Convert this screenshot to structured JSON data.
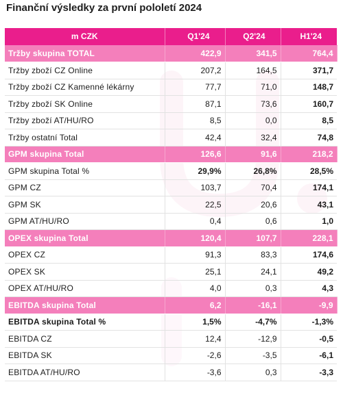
{
  "title": "Finanční výsledky za první pololetí 2024",
  "table": {
    "headers": [
      "m CZK",
      "Q1'24",
      "Q2'24",
      "H1'24"
    ],
    "rows": [
      {
        "label": "Tržby skupina TOTAL",
        "q1": "422,9",
        "q2": "341,5",
        "h1": "764,4",
        "style": "group"
      },
      {
        "label": "Tržby zboží CZ Online",
        "q1": "207,2",
        "q2": "164,5",
        "h1": "371,7",
        "style": "normal"
      },
      {
        "label": "Tržby zboží CZ Kamenné lékárny",
        "q1": "77,7",
        "q2": "71,0",
        "h1": "148,7",
        "style": "normal"
      },
      {
        "label": "Tržby zboží SK Online",
        "q1": "87,1",
        "q2": "73,6",
        "h1": "160,7",
        "style": "normal"
      },
      {
        "label": "Tržby zboží AT/HU/RO",
        "q1": "8,5",
        "q2": "0,0",
        "h1": "8,5",
        "style": "normal"
      },
      {
        "label": "Tržby ostatní Total",
        "q1": "42,4",
        "q2": "32,4",
        "h1": "74,8",
        "style": "normal"
      },
      {
        "label": "GPM skupina Total",
        "q1": "126,6",
        "q2": "91,6",
        "h1": "218,2",
        "style": "group"
      },
      {
        "label": "GPM skupina Total %",
        "q1": "29,9%",
        "q2": "26,8%",
        "h1": "28,5%",
        "style": "percent"
      },
      {
        "label": "GPM CZ",
        "q1": "103,7",
        "q2": "70,4",
        "h1": "174,1",
        "style": "normal"
      },
      {
        "label": "GPM SK",
        "q1": "22,5",
        "q2": "20,6",
        "h1": "43,1",
        "style": "normal"
      },
      {
        "label": "GPM AT/HU/RO",
        "q1": "0,4",
        "q2": "0,6",
        "h1": "1,0",
        "style": "normal"
      },
      {
        "label": "OPEX skupina Total",
        "q1": "120,4",
        "q2": "107,7",
        "h1": "228,1",
        "style": "group"
      },
      {
        "label": "OPEX CZ",
        "q1": "91,3",
        "q2": "83,3",
        "h1": "174,6",
        "style": "normal"
      },
      {
        "label": "OPEX SK",
        "q1": "25,1",
        "q2": "24,1",
        "h1": "49,2",
        "style": "normal"
      },
      {
        "label": "OPEX AT/HU/RO",
        "q1": "4,0",
        "q2": "0,3",
        "h1": "4,3",
        "style": "normal"
      },
      {
        "label": "EBITDA skupina Total",
        "q1": "6,2",
        "q2": "-16,1",
        "h1": "-9,9",
        "style": "group"
      },
      {
        "label": "EBITDA skupina Total %",
        "q1": "1,5%",
        "q2": "-4,7%",
        "h1": "-1,3%",
        "style": "strong"
      },
      {
        "label": "EBITDA CZ",
        "q1": "12,4",
        "q2": "-12,9",
        "h1": "-0,5",
        "style": "normal"
      },
      {
        "label": "EBITDA SK",
        "q1": "-2,6",
        "q2": "-3,5",
        "h1": "-6,1",
        "style": "normal"
      },
      {
        "label": "EBITDA AT/HU/RO",
        "q1": "-3,6",
        "q2": "0,3",
        "h1": "-3,3",
        "style": "normal"
      }
    ]
  },
  "colors": {
    "header": "#ea1e8c",
    "group_row": "#f47fbb",
    "watermark": "#fbe3ef"
  }
}
